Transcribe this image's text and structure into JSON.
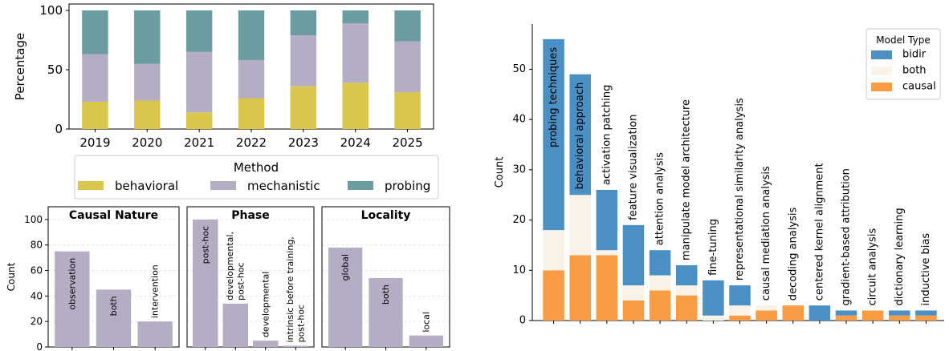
{
  "chart_data": [
    {
      "type": "bar",
      "stacked": true,
      "categories": [
        "2019",
        "2020",
        "2021",
        "2022",
        "2023",
        "2024",
        "2025"
      ],
      "ylabel": "Percentage",
      "yticks": [
        "0",
        "50",
        "100"
      ],
      "ylim": [
        0,
        100
      ],
      "legend_title": "Method",
      "legend_position": "bottom",
      "series": [
        {
          "name": "behavioral",
          "color": "#dbc64d",
          "values": [
            23,
            24,
            14,
            26,
            36,
            39,
            31
          ]
        },
        {
          "name": "mechanistic",
          "color": "#b5adc4",
          "values": [
            40,
            31,
            51,
            32,
            43,
            50,
            43
          ]
        },
        {
          "name": "probing",
          "color": "#6b9ca0",
          "values": [
            37,
            45,
            35,
            42,
            21,
            11,
            26
          ]
        }
      ]
    },
    {
      "type": "bar",
      "title": "Causal Nature",
      "ylabel": "Count",
      "yticks": [
        "0",
        "20",
        "40",
        "60",
        "80",
        "100"
      ],
      "ylim": [
        0,
        110
      ],
      "grid": true,
      "color": "#b5adc4",
      "categories": [
        "observation",
        "both",
        "intervention"
      ],
      "values": [
        75,
        45,
        20
      ]
    },
    {
      "type": "bar",
      "title": "Phase",
      "ylim": [
        0,
        110
      ],
      "grid": true,
      "color": "#b5adc4",
      "categories": [
        "post-hoc",
        "developmental,\npost-hoc",
        "developmental",
        "intrinsic before training,\npost-hoc"
      ],
      "values": [
        100,
        34,
        5,
        1
      ]
    },
    {
      "type": "bar",
      "title": "Locality",
      "ylim": [
        0,
        110
      ],
      "grid": true,
      "color": "#b5adc4",
      "categories": [
        "global",
        "both",
        "local"
      ],
      "values": [
        78,
        54,
        9
      ]
    },
    {
      "type": "bar",
      "stacked": true,
      "ylabel": "Count",
      "yticks": [
        "0",
        "10",
        "20",
        "30",
        "40",
        "50"
      ],
      "ylim": [
        0,
        59
      ],
      "legend_title": "Model Type",
      "legend_position": "top-right",
      "categories": [
        "probing techniques",
        "behavioral approach",
        "activation patching",
        "feature visualization",
        "attention analysis",
        "manipulate model architecture",
        "fine-tuning",
        "representational similarity analysis",
        "causal mediation analysis",
        "decoding analysis",
        "centered kernel alignment",
        "gradient-based attribution",
        "circuit analysis",
        "dictionary learning",
        "inductive bias"
      ],
      "series": [
        {
          "name": "causal",
          "color": "#f99c43",
          "values": [
            10,
            13,
            13,
            4,
            6,
            5,
            0,
            1,
            2,
            3,
            0,
            1,
            2,
            1,
            1
          ]
        },
        {
          "name": "both",
          "color": "#f8f3e6",
          "values": [
            8,
            12,
            1,
            3,
            3,
            2,
            1,
            2,
            1,
            0,
            0,
            0,
            0,
            0,
            0
          ]
        },
        {
          "name": "bidir",
          "color": "#4a90c4",
          "values": [
            38,
            24,
            12,
            12,
            5,
            4,
            7,
            4,
            0,
            0,
            3,
            1,
            0,
            1,
            1
          ]
        }
      ]
    }
  ]
}
